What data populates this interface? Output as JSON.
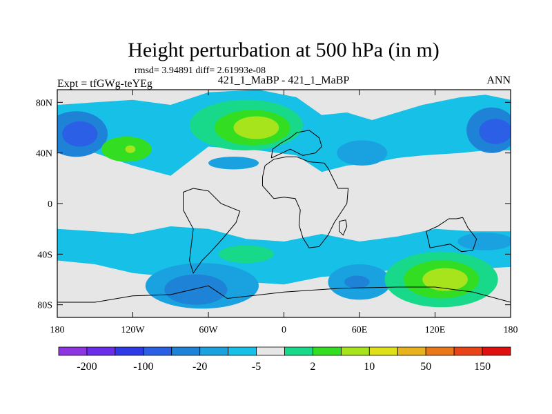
{
  "chart_data": {
    "type": "heatmap",
    "title": "Height perturbation at 500 hPa (in m)",
    "stats_line": "rmsd= 3.94891 diff= 2.61993e-08",
    "subtitle_center": "421_1_MaBP - 421_1_MaBP",
    "subtitle_left": "Expt = tfGWg-teYEg",
    "subtitle_right": "ANN",
    "xlabel": "",
    "ylabel": "",
    "xlim": [
      -180,
      180
    ],
    "ylim": [
      -90,
      90
    ],
    "x_ticks": [
      {
        "value": -180,
        "label": "180"
      },
      {
        "value": -120,
        "label": "120W"
      },
      {
        "value": -60,
        "label": "60W"
      },
      {
        "value": 0,
        "label": "0"
      },
      {
        "value": 60,
        "label": "60E"
      },
      {
        "value": 120,
        "label": "120E"
      },
      {
        "value": 180,
        "label": "180"
      }
    ],
    "y_ticks": [
      {
        "value": 80,
        "label": "80N"
      },
      {
        "value": 40,
        "label": "40N"
      },
      {
        "value": 0,
        "label": "0"
      },
      {
        "value": -40,
        "label": "40S"
      },
      {
        "value": -80,
        "label": "80S"
      }
    ],
    "colorbar": {
      "colors": [
        "#8c35e0",
        "#6a2ee8",
        "#2f3ae6",
        "#2a5fe6",
        "#1e82d6",
        "#1aa2e0",
        "#16c0e6",
        "#e6e6e6",
        "#18d98a",
        "#33dd22",
        "#a8e41c",
        "#dfe01a",
        "#e8b21c",
        "#e8781a",
        "#e84418",
        "#e01010"
      ],
      "labels": [
        {
          "after_box": 1,
          "text": "-200"
        },
        {
          "after_box": 3,
          "text": "-100"
        },
        {
          "after_box": 5,
          "text": "-20"
        },
        {
          "after_box": 7,
          "text": "-5"
        },
        {
          "after_box": 9,
          "text": "2"
        },
        {
          "after_box": 11,
          "text": "10"
        },
        {
          "after_box": 13,
          "text": "50"
        },
        {
          "after_box": 15,
          "text": "150"
        }
      ]
    },
    "field_features": [
      {
        "lon": -165,
        "lat": 55,
        "rx": 25,
        "ry": 18,
        "level": 4
      },
      {
        "lon": -162,
        "lat": 55,
        "rx": 14,
        "ry": 10,
        "level": 3
      },
      {
        "lon": -125,
        "lat": 43,
        "rx": 20,
        "ry": 10,
        "level": 9
      },
      {
        "lon": -122,
        "lat": 43,
        "rx": 4,
        "ry": 3,
        "level": 10
      },
      {
        "lon": -30,
        "lat": 62,
        "rx": 45,
        "ry": 20,
        "level": 8
      },
      {
        "lon": -25,
        "lat": 60,
        "rx": 30,
        "ry": 14,
        "level": 9
      },
      {
        "lon": -22,
        "lat": 60,
        "rx": 18,
        "ry": 9,
        "level": 10
      },
      {
        "lon": -40,
        "lat": 32,
        "rx": 20,
        "ry": 5,
        "level": 5
      },
      {
        "lon": 62,
        "lat": 40,
        "rx": 20,
        "ry": 10,
        "level": 5
      },
      {
        "lon": 165,
        "lat": 58,
        "rx": 20,
        "ry": 18,
        "level": 4
      },
      {
        "lon": 168,
        "lat": 57,
        "rx": 13,
        "ry": 10,
        "level": 3
      },
      {
        "lon": -30,
        "lat": -40,
        "rx": 22,
        "ry": 7,
        "level": 8
      },
      {
        "lon": 160,
        "lat": -30,
        "rx": 22,
        "ry": 7,
        "level": 5
      },
      {
        "lon": -65,
        "lat": -65,
        "rx": 45,
        "ry": 18,
        "level": 5
      },
      {
        "lon": -70,
        "lat": -68,
        "rx": 25,
        "ry": 12,
        "level": 4
      },
      {
        "lon": 60,
        "lat": -62,
        "rx": 25,
        "ry": 14,
        "level": 5
      },
      {
        "lon": 58,
        "lat": -62,
        "rx": 10,
        "ry": 5,
        "level": 4
      },
      {
        "lon": 125,
        "lat": -60,
        "rx": 45,
        "ry": 22,
        "level": 8
      },
      {
        "lon": 125,
        "lat": -60,
        "rx": 30,
        "ry": 15,
        "level": 9
      },
      {
        "lon": 128,
        "lat": -60,
        "rx": 18,
        "ry": 9,
        "level": 10
      }
    ],
    "field_bands": [
      {
        "lat_max": 82,
        "lat_min": 20,
        "level": 6,
        "waves": [
          [
            -180,
            78,
            42
          ],
          [
            -150,
            80,
            40
          ],
          [
            -120,
            82,
            30
          ],
          [
            -90,
            78,
            22
          ],
          [
            -60,
            88,
            45
          ],
          [
            -20,
            90,
            42
          ],
          [
            10,
            84,
            38
          ],
          [
            30,
            70,
            25
          ],
          [
            50,
            72,
            30
          ],
          [
            70,
            66,
            32
          ],
          [
            90,
            72,
            36
          ],
          [
            110,
            78,
            38
          ],
          [
            140,
            84,
            40
          ],
          [
            160,
            86,
            42
          ],
          [
            180,
            82,
            42
          ]
        ]
      },
      {
        "lat_max": 18,
        "lat_min": -18,
        "level": 7,
        "waves": []
      },
      {
        "lat_max": -18,
        "lat_min": -88,
        "level": 6,
        "waves": [
          [
            -180,
            -20,
            -45
          ],
          [
            -150,
            -22,
            -48
          ],
          [
            -120,
            -24,
            -55
          ],
          [
            -90,
            -18,
            -58
          ],
          [
            -60,
            -20,
            -62
          ],
          [
            -30,
            -28,
            -62
          ],
          [
            0,
            -30,
            -64
          ],
          [
            30,
            -24,
            -58
          ],
          [
            60,
            -30,
            -56
          ],
          [
            90,
            -26,
            -52
          ],
          [
            120,
            -20,
            -48
          ],
          [
            150,
            -22,
            -52
          ],
          [
            180,
            -22,
            -50
          ]
        ]
      }
    ],
    "coastlines": [
      {
        "name": "africa",
        "points": [
          [
            -15,
            30
          ],
          [
            -8,
            35
          ],
          [
            2,
            37
          ],
          [
            10,
            37
          ],
          [
            20,
            33
          ],
          [
            32,
            32
          ],
          [
            35,
            28
          ],
          [
            43,
            12
          ],
          [
            51,
            12
          ],
          [
            50,
            0
          ],
          [
            40,
            -15
          ],
          [
            35,
            -25
          ],
          [
            28,
            -34
          ],
          [
            20,
            -35
          ],
          [
            15,
            -27
          ],
          [
            12,
            -17
          ],
          [
            13,
            -5
          ],
          [
            9,
            4
          ],
          [
            0,
            5
          ],
          [
            -8,
            4
          ],
          [
            -17,
            14
          ],
          [
            -17,
            21
          ],
          [
            -15,
            30
          ]
        ]
      },
      {
        "name": "south_america",
        "points": [
          [
            -80,
            9
          ],
          [
            -72,
            12
          ],
          [
            -60,
            10
          ],
          [
            -50,
            0
          ],
          [
            -35,
            -6
          ],
          [
            -38,
            -15
          ],
          [
            -48,
            -27
          ],
          [
            -58,
            -38
          ],
          [
            -65,
            -45
          ],
          [
            -72,
            -55
          ],
          [
            -75,
            -45
          ],
          [
            -72,
            -20
          ],
          [
            -80,
            -5
          ],
          [
            -80,
            9
          ]
        ]
      },
      {
        "name": "australia",
        "points": [
          [
            113,
            -22
          ],
          [
            122,
            -18
          ],
          [
            131,
            -12
          ],
          [
            137,
            -12
          ],
          [
            142,
            -11
          ],
          [
            146,
            -19
          ],
          [
            153,
            -28
          ],
          [
            150,
            -37
          ],
          [
            141,
            -38
          ],
          [
            132,
            -32
          ],
          [
            116,
            -35
          ],
          [
            113,
            -22
          ]
        ]
      },
      {
        "name": "antarctica",
        "points": [
          [
            -180,
            -78
          ],
          [
            -150,
            -78
          ],
          [
            -120,
            -73
          ],
          [
            -90,
            -72
          ],
          [
            -60,
            -65
          ],
          [
            -45,
            -75
          ],
          [
            0,
            -70
          ],
          [
            45,
            -67
          ],
          [
            90,
            -66
          ],
          [
            120,
            -66
          ],
          [
            150,
            -70
          ],
          [
            180,
            -78
          ]
        ]
      },
      {
        "name": "europe",
        "points": [
          [
            -10,
            36
          ],
          [
            -9,
            43
          ],
          [
            -2,
            48
          ],
          [
            5,
            52
          ],
          [
            10,
            56
          ],
          [
            20,
            58
          ],
          [
            28,
            52
          ],
          [
            30,
            45
          ],
          [
            25,
            40
          ],
          [
            15,
            38
          ],
          [
            5,
            43
          ],
          [
            -10,
            36
          ]
        ]
      },
      {
        "name": "madagascar",
        "points": [
          [
            44,
            -14
          ],
          [
            49,
            -13
          ],
          [
            50,
            -18
          ],
          [
            47,
            -25
          ],
          [
            44,
            -22
          ],
          [
            44,
            -14
          ]
        ]
      }
    ]
  }
}
